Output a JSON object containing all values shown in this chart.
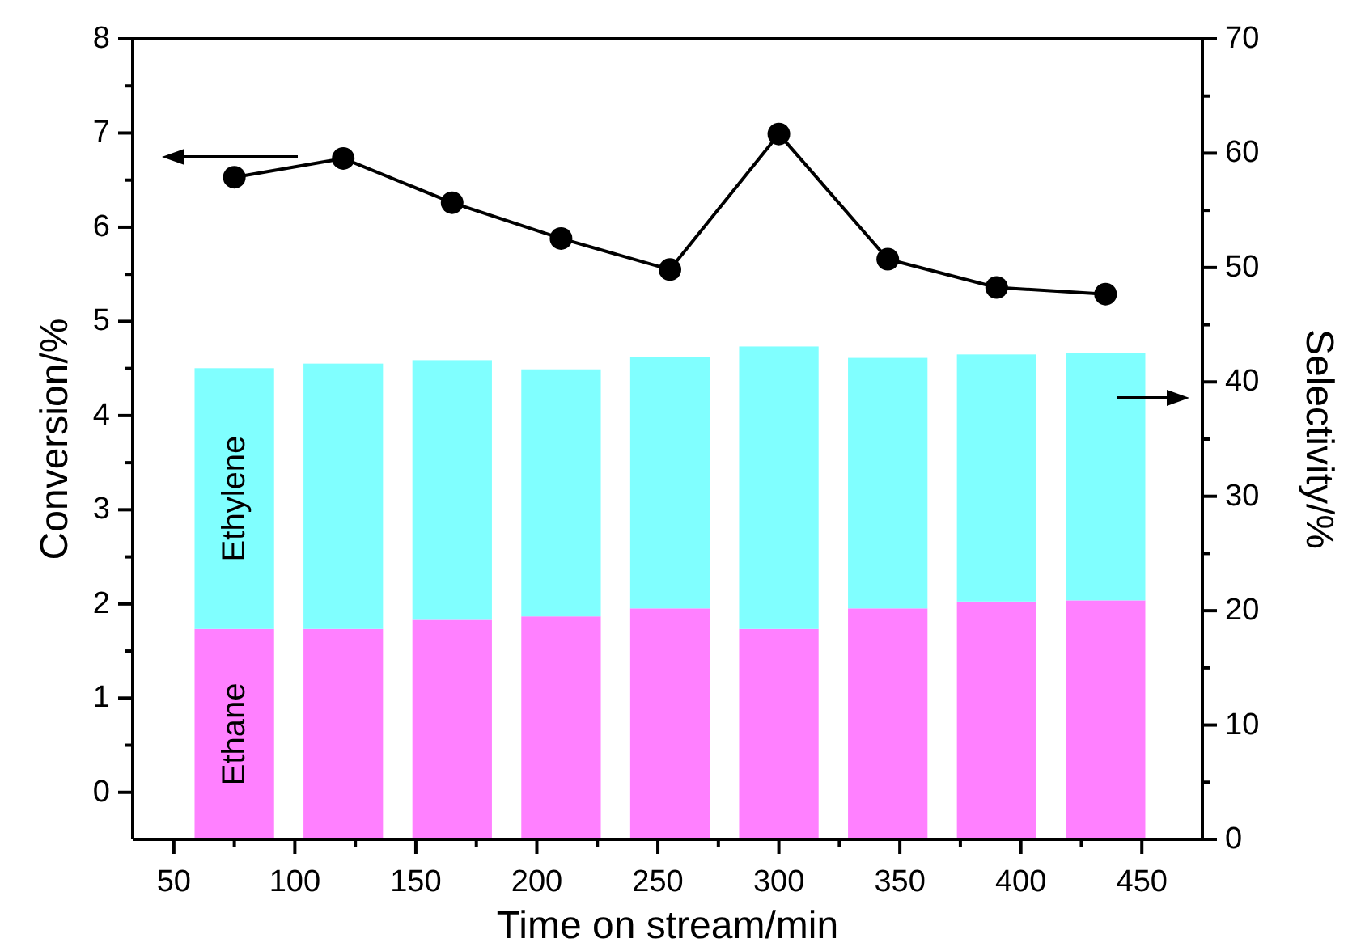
{
  "chart_data": {
    "type": "bar",
    "stacked": true,
    "xlabel": "Time on stream/min",
    "ylabel": "Conversion/%",
    "y2label": "Selectivity/%",
    "x": [
      75,
      120,
      165,
      210,
      255,
      300,
      345,
      390,
      435
    ],
    "series": [
      {
        "name": "Ethane",
        "color": "#ff80ff",
        "axis": "y2",
        "values": [
          18.4,
          18.4,
          19.2,
          19.5,
          20.2,
          18.4,
          20.2,
          20.8,
          20.9
        ]
      },
      {
        "name": "Ethylene",
        "color": "#80ffff",
        "axis": "y2",
        "values": [
          22.8,
          23.2,
          22.7,
          21.6,
          22.0,
          24.7,
          21.9,
          21.6,
          21.6
        ]
      },
      {
        "type": "line",
        "color": "#000000",
        "axis": "y",
        "values": [
          6.53,
          6.73,
          6.26,
          5.88,
          5.55,
          6.99,
          5.66,
          5.36,
          5.29
        ]
      }
    ],
    "xlim": [
      33,
      475
    ],
    "xticks": [
      50,
      {
        "value": 75,
        "label": null
      },
      100,
      {
        "value": 125,
        "label": null
      },
      150,
      {
        "value": 175,
        "label": null
      },
      200,
      {
        "value": 225,
        "label": null
      },
      250,
      {
        "value": 275,
        "label": null
      },
      300,
      {
        "value": 325,
        "label": null
      },
      350,
      {
        "value": 375,
        "label": null
      },
      400,
      {
        "value": 425,
        "label": null
      },
      450
    ],
    "ylim": [
      -0.5,
      8
    ],
    "yticks": [
      0,
      {
        "value": 0.5,
        "label": null
      },
      1,
      {
        "value": 1.5,
        "label": null
      },
      2,
      {
        "value": 2.5,
        "label": null
      },
      3,
      {
        "value": 3.5,
        "label": null
      },
      4,
      {
        "value": 4.5,
        "label": null
      },
      5,
      {
        "value": 5.5,
        "label": null
      },
      6,
      {
        "value": 6.5,
        "label": null
      },
      7,
      {
        "value": 7.5,
        "label": null
      },
      8
    ],
    "y2lim": [
      0,
      70
    ],
    "y2ticks": [
      0,
      {
        "value": 5,
        "label": null
      },
      10,
      {
        "value": 15,
        "label": null
      },
      20,
      {
        "value": 25,
        "label": null
      },
      30,
      {
        "value": 35,
        "label": null
      },
      40,
      {
        "value": 45,
        "label": null
      },
      50,
      {
        "value": 55,
        "label": null
      },
      60,
      {
        "value": 65,
        "label": null
      },
      70
    ],
    "marker": "circle",
    "grid": false
  }
}
